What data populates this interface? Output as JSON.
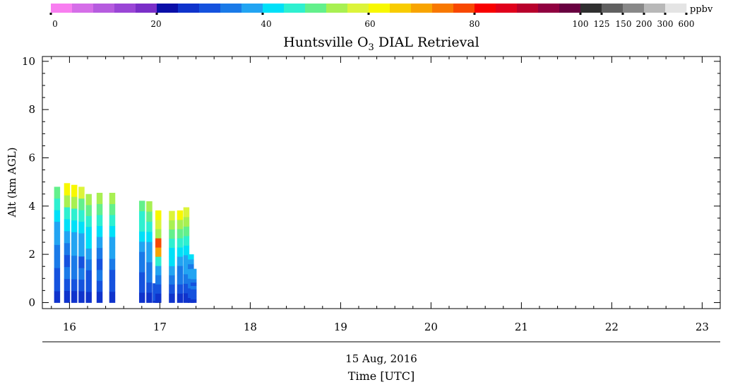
{
  "chart_data": {
    "type": "heatmap",
    "title_main": "Huntsville O",
    "title_sub": "3",
    "title_rest": " DIAL Retrieval",
    "ylabel": "Alt (km AGL)",
    "xlabel_date": "15 Aug, 2016",
    "xlabel": "Time [UTC]",
    "xlim": [
      15.7,
      23.2
    ],
    "ylim": [
      -0.25,
      10.2
    ],
    "x_ticks": [
      "16",
      "17",
      "18",
      "19",
      "20",
      "21",
      "22",
      "23"
    ],
    "y_ticks": [
      "0",
      "2",
      "4",
      "6",
      "8",
      "10"
    ],
    "colorbar": {
      "unit": "ppbv",
      "tick_labels": [
        "0",
        "20",
        "40",
        "60",
        "80",
        "100",
        "125",
        "150",
        "200",
        "300",
        "600"
      ],
      "colors": [
        "#f87ef0",
        "#d56ee8",
        "#b65cdf",
        "#9a46d6",
        "#7a2fc8",
        "#0a0fa8",
        "#0f33cc",
        "#1552de",
        "#1a7ae8",
        "#22a4f2",
        "#00e0f8",
        "#2ef0d0",
        "#63f08c",
        "#a8f052",
        "#dcf43a",
        "#f8f800",
        "#f8cc00",
        "#f8a400",
        "#f87800",
        "#f84800",
        "#f80000",
        "#e0001c",
        "#b8002c",
        "#900040",
        "#680040",
        "#303030",
        "#606060",
        "#888888",
        "#b8b8b8",
        "#e4e4e4"
      ]
    },
    "profiles": [
      {
        "x": 15.83,
        "top": 4.8,
        "c": [
          "#0f33cc",
          "#1552de",
          "#1552de",
          "#1a7ae8",
          "#1a7ae8",
          "#22a4f2",
          "#22a4f2",
          "#00e0f8",
          "#2ef0d0",
          "#63f08c"
        ]
      },
      {
        "x": 15.94,
        "top": 4.95,
        "c": [
          "#0f33cc",
          "#1552de",
          "#1a7ae8",
          "#1552de",
          "#1a7ae8",
          "#22a4f2",
          "#00e0f8",
          "#2ef0d0",
          "#a8f052",
          "#f8f800"
        ]
      },
      {
        "x": 16.02,
        "top": 4.88,
        "c": [
          "#0f33cc",
          "#1552de",
          "#1a7ae8",
          "#1a7ae8",
          "#22a4f2",
          "#22a4f2",
          "#00e0f8",
          "#2ef0d0",
          "#a8f052",
          "#f8f800"
        ]
      },
      {
        "x": 16.1,
        "top": 4.8,
        "c": [
          "#0f33cc",
          "#1552de",
          "#1a7ae8",
          "#1552de",
          "#22a4f2",
          "#22a4f2",
          "#00e0f8",
          "#2ef0d0",
          "#63f08c",
          "#dcf43a"
        ]
      },
      {
        "x": 16.18,
        "top": 4.5,
        "c": [
          "#0f33cc",
          "#1552de",
          "#1552de",
          "#1a7ae8",
          "#22a4f2",
          "#00e0f8",
          "#00e0f8",
          "#2ef0d0",
          "#63f08c",
          "#a8f052"
        ]
      },
      {
        "x": 16.3,
        "top": 4.55,
        "c": [
          "#0f33cc",
          "#1552de",
          "#1a7ae8",
          "#1552de",
          "#1a7ae8",
          "#22a4f2",
          "#00e0f8",
          "#2ef0d0",
          "#63f08c",
          "#a8f052"
        ]
      },
      {
        "x": 16.44,
        "top": 4.55,
        "c": [
          "#0f33cc",
          "#1552de",
          "#1552de",
          "#1a7ae8",
          "#22a4f2",
          "#22a4f2",
          "#00e0f8",
          "#2ef0d0",
          "#63f08c",
          "#a8f052"
        ]
      },
      {
        "x": 16.77,
        "top": 4.22,
        "c": [
          "#0f33cc",
          "#1552de",
          "#1552de",
          "#1a7ae8",
          "#1a7ae8",
          "#22a4f2",
          "#00e0f8",
          "#2ef0d0",
          "#2ef0d0",
          "#63f08c"
        ]
      },
      {
        "x": 16.85,
        "top": 4.2,
        "c": [
          "#0f33cc",
          "#1552de",
          "#1a7ae8",
          "#1a7ae8",
          "#22a4f2",
          "#22a4f2",
          "#00e0f8",
          "#2ef0d0",
          "#63f08c",
          "#a8f052"
        ]
      },
      {
        "x": 16.92,
        "top": 0.8,
        "c": [
          "#0f33cc",
          "#1552de",
          "#1552de",
          "#1552de",
          "#1552de",
          "#1552de",
          "#1552de",
          "#1552de",
          "#1552de",
          "#1552de"
        ]
      },
      {
        "x": 16.95,
        "top": 3.82,
        "c": [
          "#0f33cc",
          "#1552de",
          "#1a7ae8",
          "#22a4f2",
          "#2ef0d0",
          "#f8a400",
          "#f84800",
          "#a8f052",
          "#dcf43a",
          "#f8f800"
        ]
      },
      {
        "x": 17.1,
        "top": 3.8,
        "c": [
          "#0f33cc",
          "#1552de",
          "#1a7ae8",
          "#22a4f2",
          "#00e0f8",
          "#00e0f8",
          "#2ef0d0",
          "#63f08c",
          "#a8f052",
          "#dcf43a"
        ]
      },
      {
        "x": 17.19,
        "top": 3.82,
        "c": [
          "#0f33cc",
          "#1552de",
          "#1a7ae8",
          "#1a7ae8",
          "#22a4f2",
          "#00e0f8",
          "#2ef0d0",
          "#63f08c",
          "#a8f052",
          "#f8f800"
        ]
      },
      {
        "x": 17.26,
        "top": 3.95,
        "c": [
          "#0f33cc",
          "#1552de",
          "#1a7ae8",
          "#22a4f2",
          "#22a4f2",
          "#00e0f8",
          "#2ef0d0",
          "#63f08c",
          "#a8f052",
          "#dcf43a"
        ]
      },
      {
        "x": 17.31,
        "top": 2.0,
        "c": [
          "#0f33cc",
          "#1552de",
          "#1552de",
          "#1a7ae8",
          "#1a7ae8",
          "#22a4f2",
          "#22a4f2",
          "#1a7ae8",
          "#22a4f2",
          "#00e0f8"
        ]
      },
      {
        "x": 17.34,
        "top": 1.4,
        "c": [
          "#0f33cc",
          "#1552de",
          "#1552de",
          "#1552de",
          "#1a7ae8",
          "#1552de",
          "#1a7ae8",
          "#22a4f2",
          "#22a4f2",
          "#22a4f2"
        ]
      }
    ]
  }
}
